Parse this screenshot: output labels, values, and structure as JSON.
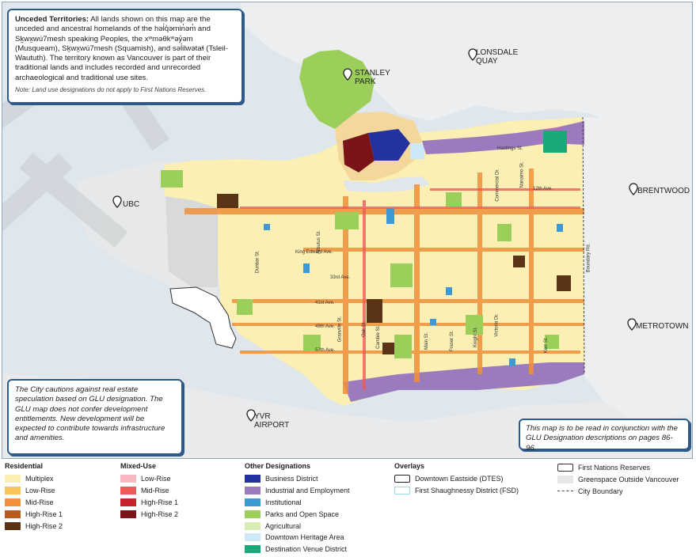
{
  "territory_box": {
    "heading": "Unceded Territories:",
    "body": "All lands shown on this map are the unceded and ancestral homelands of the həl̓q̓əmin̓əm̓ and Sḵwx̱wú7mesh speaking Peoples, the xʷməθkʷəy̓əm (Musqueam), Sḵwx̱wú7mesh (Squamish), and səl̓ilwətaɬ (Tsleil-Waututh). The territory known as Vancouver is part of their traditional lands and includes recorded and unrecorded archaeological and traditional use sites.",
    "note": "Note: Land use designations do not apply to First Nations Reserves."
  },
  "caution_box": {
    "text": "The City cautions against real estate speculation based on GLU designation. The GLU map does not confer development entitlements. New development will be expected to contribute towards infrastructure and amenities."
  },
  "glu_box": {
    "text": "This map is to be read in conjunction with the GLU Designation descriptions on pages 86-96."
  },
  "places": {
    "stanley_park": "STANLEY\nPARK",
    "lonsdale_quay": "LONSDALE\nQUAY",
    "ubc": "UBC",
    "brentwood": "BRENTWOOD",
    "metrotown": "METROTOWN",
    "yvr": "YVR\nAIRPORT"
  },
  "streets": {
    "hastings": "Hastings St.",
    "twelfth": "12th Ave.",
    "king_edward": "King Edward Ave.",
    "forty_first": "41st Ave.",
    "forty_ninth": "49th Ave.",
    "fifty_seventh": "57th Ave.",
    "dunbar": "Dunbar St.",
    "granville": "Granville St.",
    "oak": "Oak St.",
    "main": "Main St.",
    "fraser": "Fraser St.",
    "knight": "Knight St.",
    "victoria": "Victoria Dr.",
    "nanaimo": "Nanaimo St.",
    "commercial": "Commercial Dr.",
    "kerr": "Kerr St.",
    "boundary": "Boundary Rd.",
    "cambie": "Cambie St.",
    "arbutus": "Arbutus St.",
    "thirtythird": "33rd Ave."
  },
  "legend": {
    "residential": {
      "title": "Residential",
      "items": [
        {
          "label": "Multiplex",
          "color": "#fbefb4"
        },
        {
          "label": "Low-Rise",
          "color": "#f9c45c"
        },
        {
          "label": "Mid-Rise",
          "color": "#f0903a"
        },
        {
          "label": "High-Rise 1",
          "color": "#b85c1e"
        },
        {
          "label": "High-Rise 2",
          "color": "#5b3416"
        }
      ]
    },
    "mixed_use": {
      "title": "Mixed-Use",
      "items": [
        {
          "label": "Low-Rise",
          "color": "#f7b8c0"
        },
        {
          "label": "Mid-Rise",
          "color": "#ee5a5a"
        },
        {
          "label": "High-Rise 1",
          "color": "#c4242a"
        },
        {
          "label": "High-Rise 2",
          "color": "#7a1418"
        }
      ]
    },
    "other": {
      "title": "Other Designations",
      "items": [
        {
          "label": "Business District",
          "color": "#2432a0"
        },
        {
          "label": "Industrial and Employment",
          "color": "#9a7bbd"
        },
        {
          "label": "Institutional",
          "color": "#3b9ad3"
        },
        {
          "label": "Parks and Open Space",
          "color": "#9ccf5a"
        },
        {
          "label": "Agricultural",
          "color": "#d9ecb3"
        },
        {
          "label": "Downtown Heritage Area",
          "color": "#cde9f8"
        },
        {
          "label": "Destination Venue District",
          "color": "#1aa979"
        }
      ]
    },
    "overlays": {
      "title": "Overlays",
      "items": [
        {
          "label": "Downtown Eastside (DTES)",
          "color": "#222222"
        },
        {
          "label": "First Shaughnessy District (FSD)",
          "color": "#9ddbe8"
        }
      ]
    },
    "extra": {
      "items": [
        {
          "label": "First Nations Reserves",
          "color": "#ffffff"
        },
        {
          "label": "Greenspace Outside Vancouver",
          "color": "#e6e6e6"
        },
        {
          "label": "City Boundary",
          "color": "#444444"
        }
      ]
    }
  }
}
